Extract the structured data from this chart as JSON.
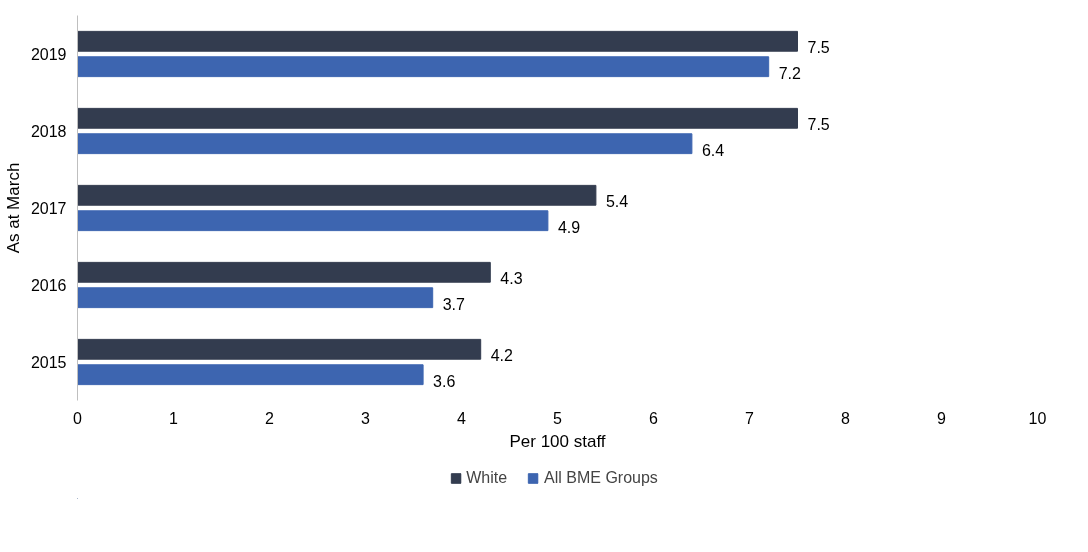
{
  "chart_data": {
    "type": "bar",
    "orientation": "horizontal",
    "xlabel": "Per 100 staff",
    "ylabel": "As at March",
    "categories": [
      "2019",
      "2018",
      "2017",
      "2016",
      "2015"
    ],
    "series": [
      {
        "name": "White",
        "color": "#333c4f",
        "values": [
          7.5,
          7.5,
          5.4,
          4.3,
          4.2
        ]
      },
      {
        "name": "All BME Groups",
        "color": "#3d65b0",
        "values": [
          7.2,
          6.4,
          4.9,
          3.7,
          3.6
        ]
      }
    ],
    "xlim": [
      0,
      10
    ],
    "xticks": [
      0,
      1,
      2,
      3,
      4,
      5,
      6,
      7,
      8,
      9,
      10
    ],
    "data_labels": true,
    "grid": false,
    "legend": "bottom"
  }
}
